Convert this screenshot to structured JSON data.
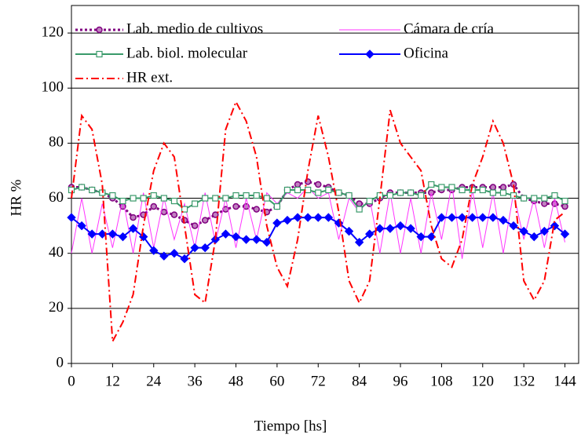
{
  "chart_data": {
    "type": "line",
    "xlabel": "Tiempo [hs]",
    "ylabel": "HR %",
    "x": [
      0,
      3,
      6,
      9,
      12,
      15,
      18,
      21,
      24,
      27,
      30,
      33,
      36,
      39,
      42,
      45,
      48,
      51,
      54,
      57,
      60,
      63,
      66,
      69,
      72,
      75,
      78,
      81,
      84,
      87,
      90,
      93,
      96,
      99,
      102,
      105,
      108,
      111,
      114,
      117,
      120,
      123,
      126,
      129,
      132,
      135,
      138,
      141,
      144
    ],
    "xlim": [
      0,
      148
    ],
    "ylim": [
      0,
      130
    ],
    "xticks": [
      0,
      12,
      24,
      36,
      48,
      60,
      72,
      84,
      96,
      108,
      120,
      132,
      144
    ],
    "yticks": [
      0,
      20,
      40,
      60,
      80,
      100,
      120
    ],
    "grid": true,
    "series": [
      {
        "name": "Lab. medio de cultivos",
        "color": "#800080",
        "marker": "circle",
        "linestyle": "dotted",
        "values": [
          64,
          64,
          63,
          62,
          60,
          57,
          53,
          54,
          57,
          55,
          54,
          52,
          50,
          52,
          54,
          56,
          57,
          57,
          56,
          55,
          57,
          63,
          65,
          66,
          65,
          64,
          62,
          61,
          58,
          58,
          60,
          62,
          62,
          62,
          62,
          62,
          63,
          63,
          64,
          64,
          64,
          64,
          64,
          65,
          60,
          59,
          58,
          58,
          57
        ]
      },
      {
        "name": "Cámara de cría",
        "color": "#ff33ff",
        "marker": "none",
        "linestyle": "solid",
        "values": [
          40,
          60,
          40,
          58,
          42,
          60,
          40,
          62,
          42,
          60,
          45,
          58,
          42,
          62,
          44,
          60,
          42,
          60,
          45,
          62,
          58,
          62,
          60,
          64,
          60,
          62,
          45,
          60,
          55,
          60,
          40,
          62,
          40,
          60,
          40,
          62,
          45,
          65,
          38,
          63,
          42,
          62,
          40,
          62,
          45,
          60,
          42,
          60,
          44
        ]
      },
      {
        "name": "Lab. biol. molecular",
        "color": "#3a9a6a",
        "marker": "square",
        "linestyle": "solid",
        "values": [
          63,
          64,
          63,
          62,
          61,
          59,
          60,
          60,
          61,
          60,
          59,
          56,
          58,
          60,
          60,
          60,
          61,
          61,
          61,
          60,
          57,
          63,
          63,
          63,
          62,
          63,
          62,
          61,
          56,
          59,
          61,
          61,
          62,
          62,
          61,
          65,
          64,
          64,
          63,
          63,
          63,
          62,
          62,
          61,
          60,
          60,
          60,
          61,
          59
        ]
      },
      {
        "name": "Oficina",
        "color": "#0000ff",
        "marker": "diamond",
        "linestyle": "solid",
        "values": [
          53,
          50,
          47,
          47,
          47,
          46,
          49,
          46,
          41,
          39,
          40,
          38,
          42,
          42,
          45,
          47,
          46,
          45,
          45,
          44,
          51,
          52,
          53,
          53,
          53,
          53,
          51,
          48,
          44,
          47,
          49,
          49,
          50,
          49,
          46,
          46,
          53,
          53,
          53,
          53,
          53,
          53,
          52,
          50,
          48,
          46,
          48,
          50,
          47
        ]
      },
      {
        "name": "HR ext.",
        "color": "#ff0000",
        "marker": "none",
        "linestyle": "dashdot",
        "values": [
          60,
          90,
          85,
          65,
          8,
          15,
          25,
          50,
          70,
          80,
          75,
          50,
          25,
          22,
          45,
          85,
          95,
          88,
          75,
          50,
          35,
          28,
          45,
          70,
          90,
          75,
          55,
          30,
          22,
          30,
          60,
          92,
          80,
          75,
          70,
          50,
          38,
          35,
          45,
          65,
          75,
          88,
          80,
          65,
          30,
          23,
          30,
          52,
          55
        ]
      }
    ]
  }
}
